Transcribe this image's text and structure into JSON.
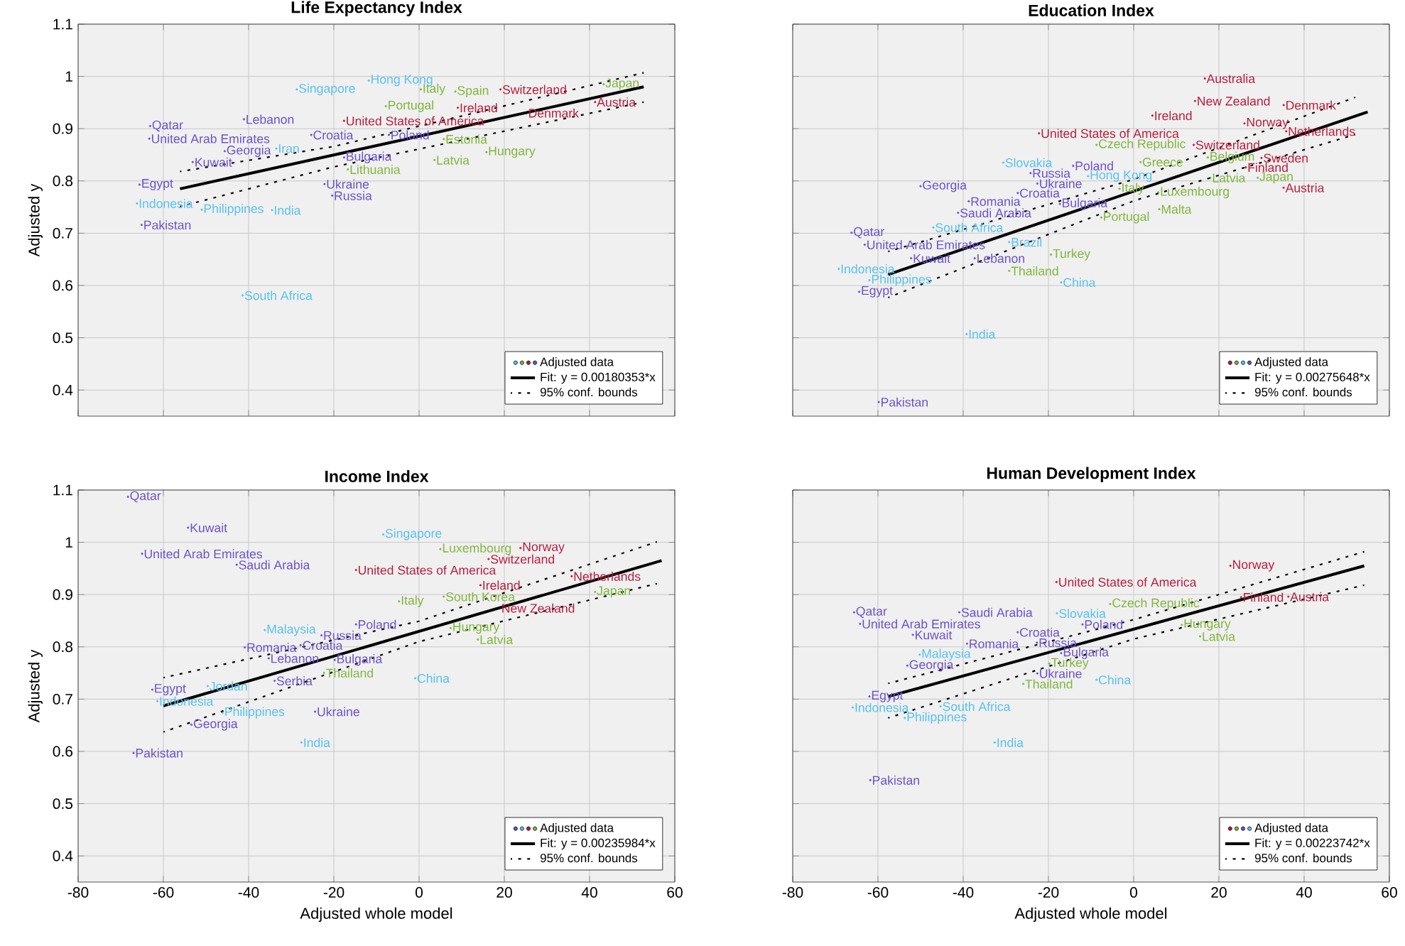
{
  "chart_data": [
    {
      "type": "scatter",
      "title": "Life Expectancy Index",
      "ylabel": "Adjusted y",
      "xlim": [
        -80,
        60
      ],
      "xticks": [
        -80,
        -60,
        -40,
        -20,
        0,
        20,
        40,
        60
      ],
      "ylim": [
        0.35,
        1.1
      ],
      "yticks": [
        0.4,
        0.5,
        0.6,
        0.7,
        0.8,
        0.9,
        1,
        1.1
      ],
      "grid": true,
      "legend": "bottom right",
      "tick_labels": "y",
      "series": [
        {
          "name": "Adjusted data",
          "marker": "circle",
          "x": [
            -28.7,
            -11.8,
            0.4,
            8.5,
            19.1,
            43.3,
            -7.8,
            9.1,
            -17.6,
            -41.1,
            -63.1,
            -63.3,
            -25.3,
            -7.1,
            5.8,
            15.8,
            3.6,
            -33.5,
            -45.6,
            -53.1,
            -17.6,
            -16.7,
            -65.6,
            -22.2,
            -20.4,
            -66.2,
            -51,
            -34.5,
            -65.1,
            -41.4,
            41.3,
            25.2
          ],
          "values": [
            0.975,
            0.992,
            0.975,
            0.971,
            0.975,
            0.985,
            0.943,
            0.94,
            0.915,
            0.918,
            0.905,
            0.881,
            0.888,
            0.888,
            0.88,
            0.855,
            0.84,
            0.862,
            0.857,
            0.836,
            0.845,
            0.822,
            0.793,
            0.794,
            0.772,
            0.757,
            0.745,
            0.744,
            0.716,
            0.581,
            0.951,
            0.93
          ],
          "value_labels": [
            "Singapore",
            "Hong Kong",
            "Italy",
            "Spain",
            "Switzerland",
            "Japan",
            "Portugal",
            "Ireland",
            "United States of America",
            "Lebanon",
            "Qatar",
            "United Arab Emirates",
            "Croatia",
            "Poland",
            "Estonia",
            "Hungary",
            "Latvia",
            "Iran",
            "Georgia",
            "Kuwait",
            "Bulgaria",
            "Lithuania",
            "Egypt",
            "Ukraine",
            "Russia",
            "Indonesia",
            "Philippines",
            "India",
            "Pakistan",
            "South Africa",
            "Austria",
            "Denmark"
          ],
          "colors": [
            "#56c1ee",
            "#56c1ee",
            "#80b53c",
            "#80b53c",
            "#b81d3d",
            "#80b53c",
            "#80b53c",
            "#b81d3d",
            "#b81d3d",
            "#6b52c9",
            "#6b52c9",
            "#6b52c9",
            "#6b52c9",
            "#6b52c9",
            "#80b53c",
            "#80b53c",
            "#80b53c",
            "#56c1ee",
            "#6b52c9",
            "#6b52c9",
            "#6b52c9",
            "#80b53c",
            "#6b52c9",
            "#6b52c9",
            "#6b52c9",
            "#56c1ee",
            "#56c1ee",
            "#56c1ee",
            "#6b52c9",
            "#56c1ee",
            "#b81d3d",
            "#b81d3d"
          ]
        },
        {
          "name": "Fit: y = 0.00180353*x",
          "type": "line",
          "color": "#000000",
          "line_style": "solid",
          "x": [
            -56.1,
            52.7
          ],
          "values": [
            0.785,
            0.98
          ]
        },
        {
          "name": "95% conf. bounds",
          "type": "line",
          "color": "#000000",
          "line_style": "dotted",
          "x": [
            -56.1,
            -20,
            52.7
          ],
          "values": [
            0.818,
            0.866,
            1.007
          ]
        },
        {
          "type": "line",
          "color": "#000000",
          "line_style": "dotted",
          "x": [
            -56.1,
            -20,
            52.7
          ],
          "values": [
            0.751,
            0.827,
            0.951
          ]
        }
      ]
    },
    {
      "type": "scatter",
      "title": "Education Index",
      "xlim": [
        -80,
        60
      ],
      "xticks": [
        -80,
        -60,
        -40,
        -20,
        0,
        20,
        40,
        60
      ],
      "ylim": [
        0.35,
        1.1
      ],
      "yticks": [
        0.4,
        0.5,
        0.6,
        0.7,
        0.8,
        0.9,
        1,
        1.1
      ],
      "grid": true,
      "legend": "bottom right",
      "tick_labels": false,
      "series": [
        {
          "name": "Adjusted data",
          "marker": "circle",
          "x": [
            16.7,
            14.4,
            35.2,
            4.4,
            26,
            -22.2,
            35.8,
            -8.7,
            14.1,
            30,
            1.6,
            17.4,
            26.3,
            29.1,
            35.2,
            18,
            -30.6,
            -14.2,
            -10.7,
            -24.2,
            -22.6,
            -50,
            -27.2,
            -3.3,
            5.8,
            -38.7,
            -41.2,
            -17.3,
            6,
            -7.6,
            -47,
            -66.2,
            -63.1,
            -29.2,
            -19.4,
            -52.2,
            -37.3,
            -29.2,
            -17,
            -69.2,
            -62,
            -64.4,
            -39.2,
            -59.8
          ],
          "values": [
            0.996,
            0.953,
            0.945,
            0.925,
            0.91,
            0.891,
            0.895,
            0.869,
            0.869,
            0.844,
            0.836,
            0.845,
            0.826,
            0.806,
            0.787,
            0.806,
            0.835,
            0.829,
            0.809,
            0.815,
            0.795,
            0.79,
            0.777,
            0.785,
            0.778,
            0.761,
            0.739,
            0.756,
            0.746,
            0.73,
            0.711,
            0.701,
            0.678,
            0.683,
            0.659,
            0.652,
            0.652,
            0.628,
            0.606,
            0.632,
            0.61,
            0.588,
            0.507,
            0.377
          ],
          "value_labels": [
            "Australia",
            "New Zealand",
            "Denmark",
            "Ireland",
            "Norway",
            "United States of America",
            "Netherlands",
            "Czech Republic",
            "Switzerland",
            "Sweden",
            "Greece",
            "Belgium",
            "Finland",
            "Japan",
            "Austria",
            "Latvia",
            "Slovakia",
            "Poland",
            "Hong Kong",
            "Russia",
            "Ukraine",
            "Georgia",
            "Croatia",
            "Italy",
            "Luxembourg",
            "Romania",
            "Saudi Arabia",
            "Bulgaria",
            "Malta",
            "Portugal",
            "South Africa",
            "Qatar",
            "United Arab Emirates",
            "Brazil",
            "Turkey",
            "Kuwait",
            "Lebanon",
            "Thailand",
            "China",
            "Indonesia",
            "Philippines",
            "Egypt",
            "India",
            "Pakistan"
          ],
          "colors": [
            "#b81d3d",
            "#b81d3d",
            "#b81d3d",
            "#b81d3d",
            "#b81d3d",
            "#b81d3d",
            "#b81d3d",
            "#80b53c",
            "#b81d3d",
            "#b81d3d",
            "#80b53c",
            "#80b53c",
            "#b81d3d",
            "#80b53c",
            "#b81d3d",
            "#80b53c",
            "#56c1ee",
            "#6b52c9",
            "#56c1ee",
            "#6b52c9",
            "#6b52c9",
            "#6b52c9",
            "#6b52c9",
            "#80b53c",
            "#80b53c",
            "#6b52c9",
            "#6b52c9",
            "#6b52c9",
            "#80b53c",
            "#80b53c",
            "#56c1ee",
            "#6b52c9",
            "#6b52c9",
            "#56c1ee",
            "#80b53c",
            "#6b52c9",
            "#6b52c9",
            "#80b53c",
            "#56c1ee",
            "#56c1ee",
            "#56c1ee",
            "#6b52c9",
            "#56c1ee",
            "#6b52c9"
          ]
        },
        {
          "name": "Fit: y = 0.00275648*x",
          "type": "line",
          "color": "#000000",
          "line_style": "solid",
          "x": [
            -57.6,
            54.9
          ],
          "values": [
            0.621,
            0.932
          ]
        },
        {
          "name": "95% conf. bounds",
          "type": "line",
          "color": "#000000",
          "line_style": "dotted",
          "x": [
            -57.6,
            0,
            52
          ],
          "values": [
            0.665,
            0.803,
            0.96
          ]
        },
        {
          "type": "line",
          "color": "#000000",
          "line_style": "dotted",
          "x": [
            -57.6,
            0,
            52
          ],
          "values": [
            0.577,
            0.762,
            0.889
          ]
        }
      ]
    },
    {
      "type": "scatter",
      "title": "Income Index",
      "xlabel": "Adjusted whole model",
      "ylabel": "Adjusted y",
      "xlim": [
        -80,
        60
      ],
      "xticks": [
        -80,
        -60,
        -40,
        -20,
        0,
        20,
        40,
        60
      ],
      "ylim": [
        0.35,
        1.1
      ],
      "yticks": [
        0.4,
        0.5,
        0.6,
        0.7,
        0.8,
        0.9,
        1,
        1.1
      ],
      "grid": true,
      "legend": "bottom right",
      "series": [
        {
          "name": "Adjusted data",
          "marker": "circle",
          "x": [
            -68.3,
            -54.2,
            -65,
            -42.8,
            -8.4,
            23.8,
            16.3,
            5,
            -14.8,
            14.4,
            18.9,
            41.3,
            35.8,
            -4.7,
            5.8,
            -36.2,
            -22.9,
            -14.8,
            -27.8,
            -40.9,
            -35.3,
            -19.8,
            -22.3,
            7.4,
            13.8,
            -0.9,
            -33.9,
            -49.6,
            -62.6,
            -61.4,
            -46.1,
            -24.4,
            -53.4,
            -27.6,
            -67
          ],
          "values": [
            1.087,
            1.028,
            0.978,
            0.957,
            1.015,
            0.989,
            0.968,
            0.987,
            0.947,
            0.918,
            0.874,
            0.905,
            0.935,
            0.887,
            0.896,
            0.832,
            0.822,
            0.843,
            0.803,
            0.799,
            0.778,
            0.775,
            0.75,
            0.836,
            0.814,
            0.74,
            0.735,
            0.725,
            0.718,
            0.696,
            0.674,
            0.676,
            0.651,
            0.617,
            0.597
          ],
          "value_labels": [
            "Qatar",
            "Kuwait",
            "United Arab Emirates",
            "Saudi Arabia",
            "Singapore",
            "Norway",
            "Switzerland",
            "Luxembourg",
            "United States of America",
            "Ireland",
            "New Zealand",
            "Japan",
            "Netherlands",
            "Italy",
            "South Korea",
            "Malaysia",
            "Russia",
            "Poland",
            "Croatia",
            "Romania",
            "Lebanon",
            "Bulgaria",
            "Thailand",
            "Hungary",
            "Latvia",
            "China",
            "Serbia",
            "Jordan",
            "Egypt",
            "Indonesia",
            "Philippines",
            "Ukraine",
            "Georgia",
            "India",
            "Pakistan"
          ],
          "colors": [
            "#6b52c9",
            "#6b52c9",
            "#6b52c9",
            "#6b52c9",
            "#56c1ee",
            "#b81d3d",
            "#b81d3d",
            "#80b53c",
            "#b81d3d",
            "#b81d3d",
            "#b81d3d",
            "#80b53c",
            "#b81d3d",
            "#80b53c",
            "#80b53c",
            "#56c1ee",
            "#6b52c9",
            "#6b52c9",
            "#6b52c9",
            "#6b52c9",
            "#6b52c9",
            "#6b52c9",
            "#80b53c",
            "#80b53c",
            "#80b53c",
            "#56c1ee",
            "#6b52c9",
            "#56c1ee",
            "#6b52c9",
            "#56c1ee",
            "#56c1ee",
            "#6b52c9",
            "#6b52c9",
            "#56c1ee",
            "#6b52c9"
          ]
        },
        {
          "name": "Fit: y = 0.00235984*x",
          "type": "line",
          "color": "#000000",
          "line_style": "solid",
          "x": [
            -60,
            56.9
          ],
          "values": [
            0.687,
            0.965
          ]
        },
        {
          "name": "95% conf. bounds",
          "type": "line",
          "color": "#000000",
          "line_style": "dotted",
          "x": [
            -60,
            0,
            55.8
          ],
          "values": [
            0.741,
            0.849,
            1.001
          ]
        },
        {
          "type": "line",
          "color": "#000000",
          "line_style": "dotted",
          "x": [
            -60,
            0,
            55.8
          ],
          "values": [
            0.637,
            0.81,
            0.921
          ]
        }
      ]
    },
    {
      "type": "scatter",
      "title": "Human Development Index",
      "xlabel": "Adjusted whole model",
      "xlim": [
        -80,
        60
      ],
      "xticks": [
        -80,
        -60,
        -40,
        -20,
        0,
        20,
        40,
        60
      ],
      "ylim": [
        0.35,
        1.1
      ],
      "yticks": [
        0.4,
        0.5,
        0.6,
        0.7,
        0.8,
        0.9,
        1,
        1.1
      ],
      "grid": true,
      "legend": "bottom right",
      "tick_labels": "x",
      "series": [
        {
          "name": "Adjusted data",
          "marker": "circle",
          "x": [
            22.7,
            -18.1,
            25.2,
            36.3,
            -5.5,
            -65.6,
            -64.2,
            -40.9,
            -18,
            -12,
            -51.8,
            -27.2,
            11.3,
            15.6,
            -39.1,
            -22.7,
            -50.2,
            -17,
            -53.1,
            -19.8,
            -22.6,
            -25.9,
            -8.7,
            -62,
            -65.9,
            -53.7,
            -45.3,
            -32.6,
            -61.8
          ],
          "values": [
            0.955,
            0.924,
            0.895,
            0.896,
            0.882,
            0.866,
            0.844,
            0.866,
            0.864,
            0.843,
            0.823,
            0.828,
            0.842,
            0.82,
            0.806,
            0.808,
            0.785,
            0.788,
            0.764,
            0.768,
            0.749,
            0.729,
            0.737,
            0.705,
            0.684,
            0.664,
            0.686,
            0.617,
            0.545
          ],
          "value_labels": [
            "Norway",
            "United States of America",
            "Finland",
            "Austria",
            "Czech Republic",
            "Qatar",
            "United Arab Emirates",
            "Saudi Arabia",
            "Slovakia",
            "Poland",
            "Kuwait",
            "Croatia",
            "Hungary",
            "Latvia",
            "Romania",
            "Russia",
            "Malaysia",
            "Bulgaria",
            "Georgia",
            "Turkey",
            "Ukraine",
            "Thailand",
            "China",
            "Egypt",
            "Indonesia",
            "Philippines",
            "South Africa",
            "India",
            "Pakistan"
          ],
          "colors": [
            "#b81d3d",
            "#b81d3d",
            "#b81d3d",
            "#b81d3d",
            "#80b53c",
            "#6b52c9",
            "#6b52c9",
            "#6b52c9",
            "#56c1ee",
            "#6b52c9",
            "#6b52c9",
            "#6b52c9",
            "#80b53c",
            "#80b53c",
            "#6b52c9",
            "#6b52c9",
            "#56c1ee",
            "#6b52c9",
            "#6b52c9",
            "#80b53c",
            "#6b52c9",
            "#80b53c",
            "#56c1ee",
            "#6b52c9",
            "#56c1ee",
            "#56c1ee",
            "#56c1ee",
            "#56c1ee",
            "#6b52c9"
          ]
        },
        {
          "name": "Fit: y = 0.00223742*x",
          "type": "line",
          "color": "#000000",
          "line_style": "solid",
          "x": [
            -57.6,
            54.1
          ],
          "values": [
            0.705,
            0.955
          ]
        },
        {
          "name": "95% conf. bounds",
          "type": "line",
          "color": "#000000",
          "line_style": "dotted",
          "x": [
            -57.6,
            0,
            54.1
          ],
          "values": [
            0.73,
            0.852,
            0.982
          ]
        },
        {
          "type": "line",
          "color": "#000000",
          "line_style": "dotted",
          "x": [
            -57.6,
            0,
            54.1
          ],
          "values": [
            0.664,
            0.815,
            0.918
          ]
        }
      ]
    }
  ]
}
